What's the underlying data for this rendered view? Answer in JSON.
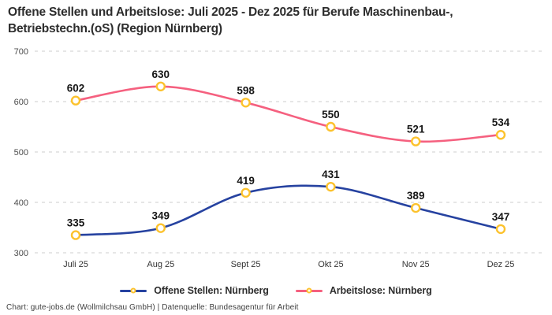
{
  "header": {
    "title_line1": "Offene Stellen und Arbeitslose: Juli 2025 - Dez 2025 für Berufe Maschinenbau-,",
    "title_line2": "Betriebstechn.(oS) (Region Nürnberg)"
  },
  "chart_data": {
    "type": "line",
    "title": "Offene Stellen und Arbeitslose: Juli 2025 - Dez 2025 für Berufe Maschinenbau-, Betriebstechn.(oS) (Region Nürnberg)",
    "categories": [
      "Juli 25",
      "Aug 25",
      "Sept 25",
      "Okt 25",
      "Nov 25",
      "Dez 25"
    ],
    "series": [
      {
        "name": "Offene Stellen: Nürnberg",
        "color": "#2642a0",
        "values": [
          335,
          349,
          419,
          431,
          389,
          347
        ]
      },
      {
        "name": "Arbeitslose: Nürnberg",
        "color": "#f5607f",
        "values": [
          602,
          630,
          598,
          550,
          521,
          534
        ]
      }
    ],
    "ylim": [
      300,
      700
    ],
    "yticks": [
      300,
      400,
      500,
      600,
      700
    ],
    "grid": "horizontal-dashed",
    "gridline_color": "#cccccc",
    "axis_label_color": "#4d4d4d",
    "point_label_color": "#161616",
    "marker": {
      "fill": "#ffffff",
      "stroke": "#fcc22d"
    },
    "legend_position": "bottom",
    "show_point_labels": true
  },
  "footer": {
    "credit": "Chart: gute-jobs.de (Wollmilchsau GmbH) | Datenquelle: Bundesagentur für Arbeit"
  }
}
